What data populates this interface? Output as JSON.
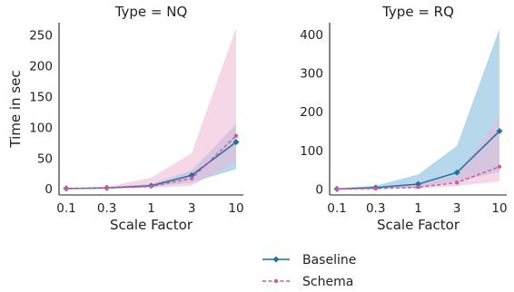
{
  "chart_data": [
    {
      "type": "line",
      "title": "Type = NQ",
      "xlabel": "Scale Factor",
      "ylabel": "Time in sec",
      "x_scale": "log",
      "x": [
        0.1,
        0.3,
        1,
        3,
        10
      ],
      "x_tick_labels": [
        "0.1",
        "0.3",
        "1",
        "3",
        "10"
      ],
      "ylim": [
        -10,
        270
      ],
      "y_ticks": [
        0,
        50,
        100,
        150,
        200,
        250
      ],
      "grid": false,
      "series": [
        {
          "name": "Baseline",
          "color": "#1f6fa6",
          "band_color": "#7ab8d8",
          "marker": "diamond",
          "line_style": "solid",
          "values": [
            0.5,
            1.5,
            5,
            22,
            76
          ],
          "ci_low": [
            0.2,
            0.8,
            3,
            10,
            32
          ],
          "ci_high": [
            1,
            2.5,
            8,
            30,
            105
          ]
        },
        {
          "name": "Schema",
          "color": "#d05aa0",
          "band_color": "#eeb7d3",
          "marker": "dot",
          "line_style": "dashed",
          "values": [
            0.4,
            1.2,
            4,
            17,
            86
          ],
          "ci_low": [
            0.1,
            0.5,
            1.5,
            5,
            45
          ],
          "ci_high": [
            1,
            3.5,
            18,
            58,
            262
          ]
        }
      ]
    },
    {
      "type": "line",
      "title": "Type = RQ",
      "xlabel": "Scale Factor",
      "ylabel": "",
      "x_scale": "log",
      "x": [
        0.1,
        0.3,
        1,
        3,
        10
      ],
      "x_tick_labels": [
        "0.1",
        "0.3",
        "1",
        "3",
        "10"
      ],
      "ylim": [
        -15,
        430
      ],
      "y_ticks": [
        0,
        100,
        200,
        300,
        400
      ],
      "grid": false,
      "series": [
        {
          "name": "Baseline",
          "color": "#1f6fa6",
          "band_color": "#7ab8d8",
          "marker": "diamond",
          "line_style": "solid",
          "values": [
            0.5,
            4,
            13,
            43,
            150
          ],
          "ci_low": [
            0.2,
            1,
            5,
            20,
            45
          ],
          "ci_high": [
            2,
            9,
            38,
            112,
            415
          ]
        },
        {
          "name": "Schema",
          "color": "#d05aa0",
          "band_color": "#eeb7d3",
          "marker": "dot",
          "line_style": "dashed",
          "values": [
            0.4,
            1.5,
            5,
            17,
            58
          ],
          "ci_low": [
            0.1,
            0.5,
            2,
            8,
            20
          ],
          "ci_high": [
            1,
            4,
            14,
            35,
            185
          ]
        }
      ]
    }
  ],
  "legend": {
    "position": "bottom-center",
    "items": [
      {
        "label": "Baseline",
        "color": "#1f6fa6",
        "marker": "diamond",
        "line_style": "solid"
      },
      {
        "label": "Schema",
        "color": "#d05aa0",
        "marker": "dot",
        "line_style": "dashed"
      }
    ]
  }
}
